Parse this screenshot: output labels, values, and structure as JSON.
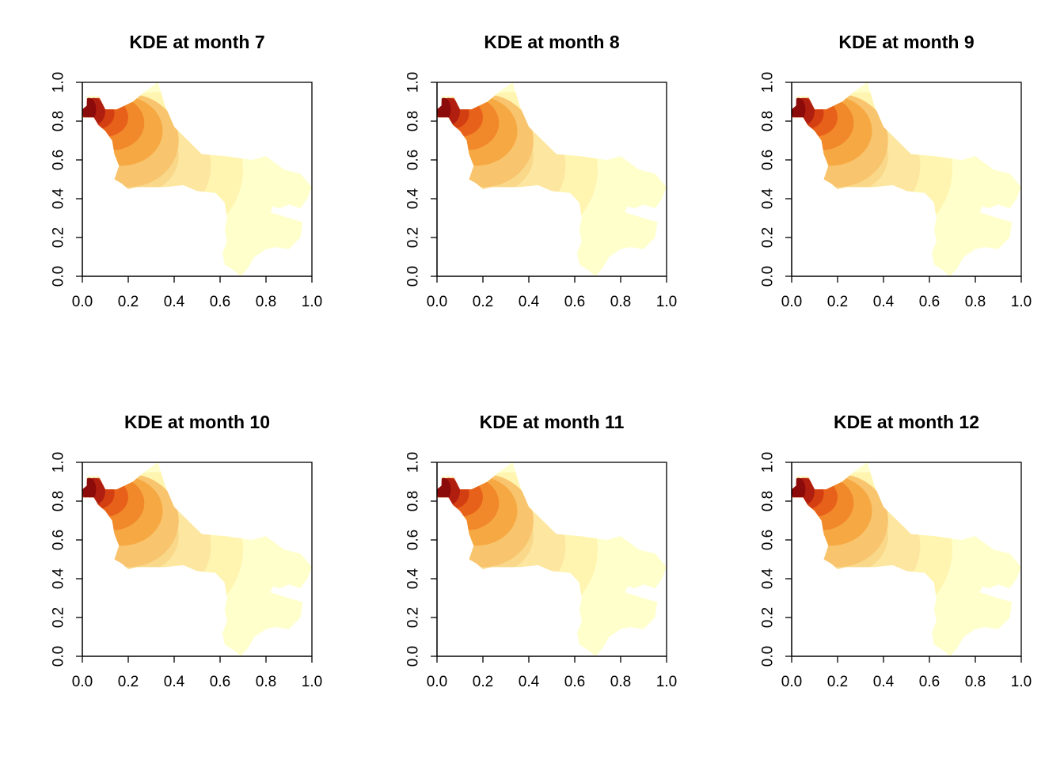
{
  "colors": {
    "levels": [
      "#FFFFCC",
      "#FFF5B0",
      "#FCE6A0",
      "#F9D88A",
      "#F8C46E",
      "#F6A943",
      "#F1882A",
      "#E8611A",
      "#D43F12",
      "#B01E10",
      "#8B0A0A"
    ],
    "axis": "#000000",
    "background": "#FFFFFF"
  },
  "chart_data": [
    {
      "type": "heatmap",
      "title": "KDE at month 7",
      "xlim": [
        0,
        1
      ],
      "ylim": [
        0,
        1
      ],
      "x_ticks": [
        "0.0",
        "0.2",
        "0.4",
        "0.6",
        "0.8",
        "1.0"
      ],
      "y_ticks": [
        "0.0",
        "0.2",
        "0.4",
        "0.6",
        "0.8",
        "1.0"
      ],
      "density_peak": {
        "x": 0.04,
        "y": 0.86
      },
      "contour_levels": [
        {
          "level": 10,
          "center": [
            0.03,
            0.86
          ],
          "rx": 0.03,
          "ry": 0.06
        },
        {
          "level": 9,
          "center": [
            0.05,
            0.85
          ],
          "rx": 0.05,
          "ry": 0.07
        },
        {
          "level": 8,
          "center": [
            0.07,
            0.84
          ],
          "rx": 0.07,
          "ry": 0.08
        },
        {
          "level": 7,
          "center": [
            0.1,
            0.82
          ],
          "rx": 0.1,
          "ry": 0.1
        },
        {
          "level": 6,
          "center": [
            0.13,
            0.79
          ],
          "rx": 0.14,
          "ry": 0.14
        },
        {
          "level": 5,
          "center": [
            0.17,
            0.75
          ],
          "rx": 0.18,
          "ry": 0.18
        },
        {
          "level": 4,
          "center": [
            0.2,
            0.7
          ],
          "rx": 0.22,
          "ry": 0.24
        },
        {
          "level": 3,
          "center": [
            0.22,
            0.62
          ],
          "rx": 0.2,
          "ry": 0.2
        },
        {
          "level": 2,
          "center": [
            0.28,
            0.57
          ],
          "rx": 0.28,
          "ry": 0.3
        },
        {
          "level": 1,
          "center": [
            0.32,
            0.55
          ],
          "rx": 0.38,
          "ry": 0.4
        }
      ]
    },
    {
      "type": "heatmap",
      "title": "KDE at month 8",
      "xlim": [
        0,
        1
      ],
      "ylim": [
        0,
        1
      ],
      "x_ticks": [
        "0.0",
        "0.2",
        "0.4",
        "0.6",
        "0.8",
        "1.0"
      ],
      "y_ticks": [
        "0.0",
        "0.2",
        "0.4",
        "0.6",
        "0.8",
        "1.0"
      ],
      "density_peak": {
        "x": 0.04,
        "y": 0.86
      },
      "contour_levels": [
        {
          "level": 10,
          "center": [
            0.03,
            0.86
          ],
          "rx": 0.03,
          "ry": 0.06
        },
        {
          "level": 9,
          "center": [
            0.05,
            0.85
          ],
          "rx": 0.05,
          "ry": 0.07
        },
        {
          "level": 8,
          "center": [
            0.07,
            0.84
          ],
          "rx": 0.07,
          "ry": 0.08
        },
        {
          "level": 7,
          "center": [
            0.1,
            0.82
          ],
          "rx": 0.1,
          "ry": 0.1
        },
        {
          "level": 6,
          "center": [
            0.13,
            0.79
          ],
          "rx": 0.14,
          "ry": 0.14
        },
        {
          "level": 5,
          "center": [
            0.17,
            0.75
          ],
          "rx": 0.18,
          "ry": 0.18
        },
        {
          "level": 4,
          "center": [
            0.2,
            0.7
          ],
          "rx": 0.22,
          "ry": 0.24
        },
        {
          "level": 3,
          "center": [
            0.22,
            0.62
          ],
          "rx": 0.2,
          "ry": 0.2
        },
        {
          "level": 2,
          "center": [
            0.28,
            0.57
          ],
          "rx": 0.28,
          "ry": 0.3
        },
        {
          "level": 1,
          "center": [
            0.32,
            0.55
          ],
          "rx": 0.38,
          "ry": 0.4
        }
      ]
    },
    {
      "type": "heatmap",
      "title": "KDE at month 9",
      "xlim": [
        0,
        1
      ],
      "ylim": [
        0,
        1
      ],
      "x_ticks": [
        "0.0",
        "0.2",
        "0.4",
        "0.6",
        "0.8",
        "1.0"
      ],
      "y_ticks": [
        "0.0",
        "0.2",
        "0.4",
        "0.6",
        "0.8",
        "1.0"
      ],
      "density_peak": {
        "x": 0.04,
        "y": 0.86
      },
      "contour_levels": [
        {
          "level": 10,
          "center": [
            0.03,
            0.86
          ],
          "rx": 0.03,
          "ry": 0.06
        },
        {
          "level": 9,
          "center": [
            0.05,
            0.85
          ],
          "rx": 0.05,
          "ry": 0.07
        },
        {
          "level": 8,
          "center": [
            0.07,
            0.84
          ],
          "rx": 0.07,
          "ry": 0.08
        },
        {
          "level": 7,
          "center": [
            0.1,
            0.82
          ],
          "rx": 0.1,
          "ry": 0.1
        },
        {
          "level": 6,
          "center": [
            0.13,
            0.79
          ],
          "rx": 0.14,
          "ry": 0.14
        },
        {
          "level": 5,
          "center": [
            0.17,
            0.75
          ],
          "rx": 0.18,
          "ry": 0.18
        },
        {
          "level": 4,
          "center": [
            0.2,
            0.7
          ],
          "rx": 0.22,
          "ry": 0.24
        },
        {
          "level": 3,
          "center": [
            0.22,
            0.62
          ],
          "rx": 0.2,
          "ry": 0.2
        },
        {
          "level": 2,
          "center": [
            0.28,
            0.57
          ],
          "rx": 0.28,
          "ry": 0.3
        },
        {
          "level": 1,
          "center": [
            0.32,
            0.55
          ],
          "rx": 0.38,
          "ry": 0.4
        }
      ]
    },
    {
      "type": "heatmap",
      "title": "KDE at month 10",
      "xlim": [
        0,
        1
      ],
      "ylim": [
        0,
        1
      ],
      "x_ticks": [
        "0.0",
        "0.2",
        "0.4",
        "0.6",
        "0.8",
        "1.0"
      ],
      "y_ticks": [
        "0.0",
        "0.2",
        "0.4",
        "0.6",
        "0.8",
        "1.0"
      ],
      "density_peak": {
        "x": 0.04,
        "y": 0.86
      },
      "contour_levels": [
        {
          "level": 10,
          "center": [
            0.03,
            0.86
          ],
          "rx": 0.03,
          "ry": 0.06
        },
        {
          "level": 9,
          "center": [
            0.05,
            0.85
          ],
          "rx": 0.05,
          "ry": 0.07
        },
        {
          "level": 8,
          "center": [
            0.07,
            0.84
          ],
          "rx": 0.07,
          "ry": 0.08
        },
        {
          "level": 7,
          "center": [
            0.1,
            0.82
          ],
          "rx": 0.1,
          "ry": 0.1
        },
        {
          "level": 6,
          "center": [
            0.13,
            0.79
          ],
          "rx": 0.14,
          "ry": 0.14
        },
        {
          "level": 5,
          "center": [
            0.17,
            0.75
          ],
          "rx": 0.18,
          "ry": 0.18
        },
        {
          "level": 4,
          "center": [
            0.2,
            0.7
          ],
          "rx": 0.22,
          "ry": 0.24
        },
        {
          "level": 3,
          "center": [
            0.22,
            0.62
          ],
          "rx": 0.2,
          "ry": 0.2
        },
        {
          "level": 2,
          "center": [
            0.28,
            0.57
          ],
          "rx": 0.28,
          "ry": 0.3
        },
        {
          "level": 1,
          "center": [
            0.32,
            0.55
          ],
          "rx": 0.38,
          "ry": 0.4
        }
      ]
    },
    {
      "type": "heatmap",
      "title": "KDE at month 11",
      "xlim": [
        0,
        1
      ],
      "ylim": [
        0,
        1
      ],
      "x_ticks": [
        "0.0",
        "0.2",
        "0.4",
        "0.6",
        "0.8",
        "1.0"
      ],
      "y_ticks": [
        "0.0",
        "0.2",
        "0.4",
        "0.6",
        "0.8",
        "1.0"
      ],
      "density_peak": {
        "x": 0.04,
        "y": 0.86
      },
      "contour_levels": [
        {
          "level": 10,
          "center": [
            0.03,
            0.86
          ],
          "rx": 0.03,
          "ry": 0.06
        },
        {
          "level": 9,
          "center": [
            0.05,
            0.85
          ],
          "rx": 0.05,
          "ry": 0.07
        },
        {
          "level": 8,
          "center": [
            0.07,
            0.84
          ],
          "rx": 0.07,
          "ry": 0.08
        },
        {
          "level": 7,
          "center": [
            0.1,
            0.82
          ],
          "rx": 0.1,
          "ry": 0.1
        },
        {
          "level": 6,
          "center": [
            0.13,
            0.79
          ],
          "rx": 0.14,
          "ry": 0.14
        },
        {
          "level": 5,
          "center": [
            0.17,
            0.75
          ],
          "rx": 0.18,
          "ry": 0.18
        },
        {
          "level": 4,
          "center": [
            0.2,
            0.7
          ],
          "rx": 0.22,
          "ry": 0.24
        },
        {
          "level": 3,
          "center": [
            0.22,
            0.62
          ],
          "rx": 0.2,
          "ry": 0.2
        },
        {
          "level": 2,
          "center": [
            0.28,
            0.57
          ],
          "rx": 0.28,
          "ry": 0.3
        },
        {
          "level": 1,
          "center": [
            0.32,
            0.55
          ],
          "rx": 0.38,
          "ry": 0.4
        }
      ]
    },
    {
      "type": "heatmap",
      "title": "KDE at month 12",
      "xlim": [
        0,
        1
      ],
      "ylim": [
        0,
        1
      ],
      "x_ticks": [
        "0.0",
        "0.2",
        "0.4",
        "0.6",
        "0.8",
        "1.0"
      ],
      "y_ticks": [
        "0.0",
        "0.2",
        "0.4",
        "0.6",
        "0.8",
        "1.0"
      ],
      "density_peak": {
        "x": 0.04,
        "y": 0.86
      },
      "contour_levels": [
        {
          "level": 10,
          "center": [
            0.03,
            0.86
          ],
          "rx": 0.03,
          "ry": 0.06
        },
        {
          "level": 9,
          "center": [
            0.05,
            0.85
          ],
          "rx": 0.05,
          "ry": 0.07
        },
        {
          "level": 8,
          "center": [
            0.07,
            0.84
          ],
          "rx": 0.07,
          "ry": 0.08
        },
        {
          "level": 7,
          "center": [
            0.1,
            0.82
          ],
          "rx": 0.1,
          "ry": 0.1
        },
        {
          "level": 6,
          "center": [
            0.13,
            0.79
          ],
          "rx": 0.14,
          "ry": 0.14
        },
        {
          "level": 5,
          "center": [
            0.17,
            0.75
          ],
          "rx": 0.18,
          "ry": 0.18
        },
        {
          "level": 4,
          "center": [
            0.2,
            0.7
          ],
          "rx": 0.22,
          "ry": 0.24
        },
        {
          "level": 3,
          "center": [
            0.22,
            0.62
          ],
          "rx": 0.2,
          "ry": 0.2
        },
        {
          "level": 2,
          "center": [
            0.28,
            0.57
          ],
          "rx": 0.28,
          "ry": 0.3
        },
        {
          "level": 1,
          "center": [
            0.32,
            0.55
          ],
          "rx": 0.38,
          "ry": 0.4
        }
      ]
    }
  ],
  "region_outline": [
    [
      0.02,
      0.93
    ],
    [
      0.07,
      0.93
    ],
    [
      0.1,
      0.86
    ],
    [
      0.15,
      0.86
    ],
    [
      0.22,
      0.9
    ],
    [
      0.28,
      0.96
    ],
    [
      0.33,
      1.0
    ],
    [
      0.36,
      0.88
    ],
    [
      0.4,
      0.77
    ],
    [
      0.46,
      0.7
    ],
    [
      0.52,
      0.63
    ],
    [
      0.62,
      0.62
    ],
    [
      0.74,
      0.6
    ],
    [
      0.8,
      0.62
    ],
    [
      0.88,
      0.55
    ],
    [
      0.95,
      0.53
    ],
    [
      1.0,
      0.46
    ],
    [
      0.98,
      0.4
    ],
    [
      0.95,
      0.35
    ],
    [
      0.9,
      0.37
    ],
    [
      0.86,
      0.35
    ],
    [
      0.83,
      0.36
    ],
    [
      0.82,
      0.33
    ],
    [
      0.9,
      0.3
    ],
    [
      0.96,
      0.28
    ],
    [
      0.95,
      0.2
    ],
    [
      0.9,
      0.14
    ],
    [
      0.84,
      0.15
    ],
    [
      0.8,
      0.14
    ],
    [
      0.75,
      0.1
    ],
    [
      0.72,
      0.04
    ],
    [
      0.69,
      0.0
    ],
    [
      0.66,
      0.03
    ],
    [
      0.62,
      0.06
    ],
    [
      0.61,
      0.12
    ],
    [
      0.63,
      0.18
    ],
    [
      0.62,
      0.24
    ],
    [
      0.63,
      0.3
    ],
    [
      0.62,
      0.38
    ],
    [
      0.58,
      0.43
    ],
    [
      0.5,
      0.44
    ],
    [
      0.44,
      0.47
    ],
    [
      0.36,
      0.46
    ],
    [
      0.3,
      0.46
    ],
    [
      0.24,
      0.46
    ],
    [
      0.2,
      0.45
    ],
    [
      0.17,
      0.48
    ],
    [
      0.14,
      0.5
    ],
    [
      0.16,
      0.57
    ],
    [
      0.14,
      0.63
    ],
    [
      0.13,
      0.7
    ],
    [
      0.1,
      0.75
    ],
    [
      0.07,
      0.78
    ],
    [
      0.05,
      0.82
    ],
    [
      0.0,
      0.82
    ],
    [
      0.0,
      0.86
    ],
    [
      0.02,
      0.88
    ],
    [
      0.02,
      0.93
    ]
  ]
}
